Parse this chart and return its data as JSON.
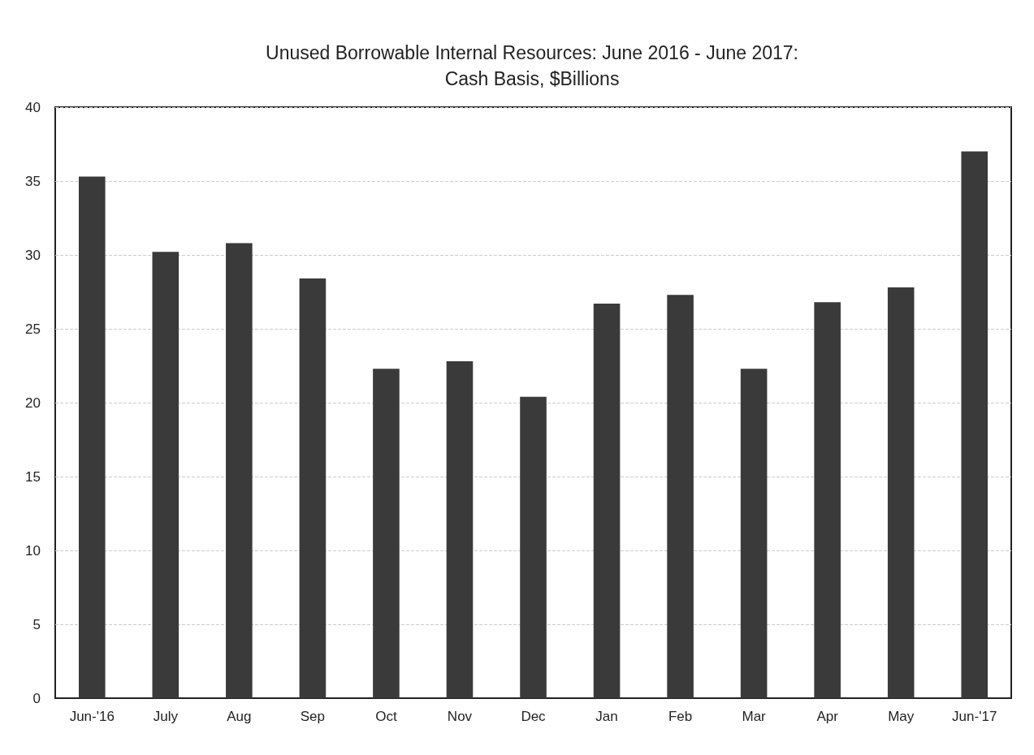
{
  "chart_data": {
    "type": "bar",
    "title": "Unused Borrowable Internal Resources: June 2016 - June 2017:\nCash Basis, $Billions",
    "categories": [
      "Jun-'16",
      "July",
      "Aug",
      "Sep",
      "Oct",
      "Nov",
      "Dec",
      "Jan",
      "Feb",
      "Mar",
      "Apr",
      "May",
      "Jun-'17"
    ],
    "values": [
      35.3,
      30.2,
      30.8,
      28.4,
      22.3,
      22.8,
      20.4,
      26.7,
      27.3,
      22.3,
      26.8,
      27.8,
      37.0
    ],
    "color": "#3a3a3a",
    "ylim": [
      0,
      40
    ],
    "yticks": [
      0,
      5,
      10,
      15,
      20,
      25,
      30,
      35,
      40
    ],
    "grid": "y"
  }
}
